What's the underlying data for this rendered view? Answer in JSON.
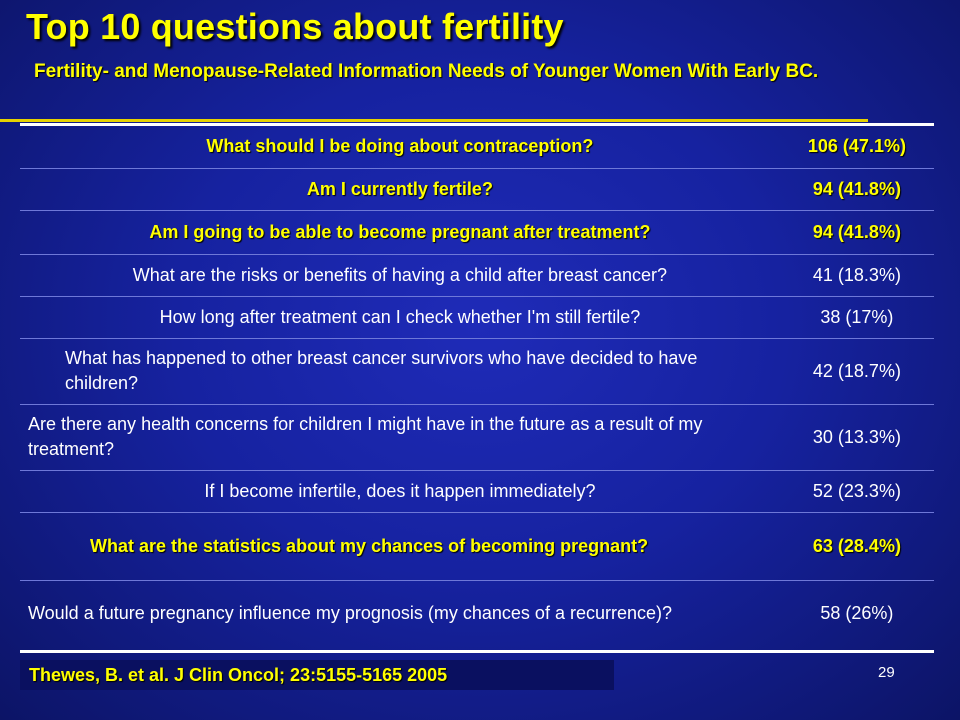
{
  "slide": {
    "title": "Top 10 questions about fertility",
    "subtitle": "Fertility- and Menopause-Related Information Needs of Younger Women With Early BC."
  },
  "table": {
    "rows": [
      {
        "question": "What should I be doing about contraception?",
        "value": "106 (47.1%)"
      },
      {
        "question": "Am I currently fertile?",
        "value": "94 (41.8%)"
      },
      {
        "question": "Am I going to be able to become pregnant after treatment?",
        "value": "94 (41.8%)"
      },
      {
        "question": "What are the risks or benefits of having a child after breast cancer?",
        "value": "41 (18.3%)"
      },
      {
        "question": "How long after treatment can I check whether I'm still fertile?",
        "value": "38 (17%)"
      },
      {
        "question": "What has happened to other breast cancer survivors who have decided to have children?",
        "value": "42 (18.7%)"
      },
      {
        "question": "Are there any health concerns for children I might have in the future as a result of my treatment?",
        "value": "30 (13.3%)"
      },
      {
        "question": "If I become infertile, does it happen immediately?",
        "value": "52 (23.3%)"
      },
      {
        "question": "What are the statistics about my chances of becoming pregnant?",
        "value": "63 (28.4%)"
      },
      {
        "question": "Would a future pregnancy influence my prognosis (my chances of a recurrence)?",
        "value": "58 (26%)"
      }
    ]
  },
  "footer": {
    "citation": "Thewes, B. et al. J Clin Oncol; 23:5155-5165 2005",
    "page_number": "29"
  }
}
